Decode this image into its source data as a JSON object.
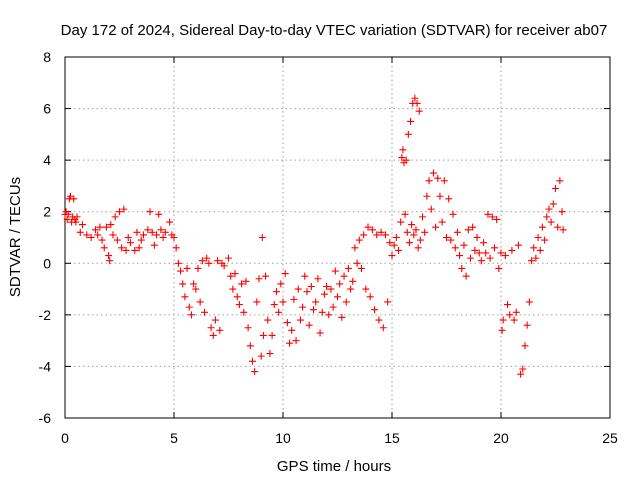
{
  "chart_data": {
    "type": "scatter",
    "title": "Day 172 of 2024, Sidereal Day-to-day VTEC variation (SDTVAR) for receiver ab07",
    "xlabel": "GPS time / hours",
    "ylabel": "SDTVAR / TECUs",
    "xlim": [
      0,
      25
    ],
    "ylim": [
      -6,
      8
    ],
    "xticks": [
      0,
      5,
      10,
      15,
      20,
      25
    ],
    "yticks": [
      -6,
      -4,
      -2,
      0,
      2,
      4,
      6,
      8
    ],
    "xtick_labels": [
      "0",
      "5",
      "10",
      "15",
      "20",
      "25"
    ],
    "ytick_labels": [
      "-6",
      "-4",
      "-2",
      "0",
      "2",
      "4",
      "6",
      "8"
    ],
    "grid": true,
    "marker": "+",
    "color": "#ff0000",
    "series": [
      {
        "name": "SDTVAR",
        "points": [
          [
            0.0,
            1.9
          ],
          [
            0.05,
            2.0
          ],
          [
            0.1,
            1.7
          ],
          [
            0.15,
            1.9
          ],
          [
            0.2,
            2.5
          ],
          [
            0.25,
            2.6
          ],
          [
            0.3,
            1.6
          ],
          [
            0.35,
            1.8
          ],
          [
            0.4,
            2.5
          ],
          [
            0.45,
            1.7
          ],
          [
            0.5,
            1.6
          ],
          [
            0.55,
            1.8
          ],
          [
            0.7,
            1.2
          ],
          [
            0.8,
            1.5
          ],
          [
            1.0,
            1.1
          ],
          [
            1.2,
            1.0
          ],
          [
            1.4,
            1.3
          ],
          [
            1.5,
            1.1
          ],
          [
            1.6,
            1.4
          ],
          [
            1.7,
            0.9
          ],
          [
            1.8,
            0.6
          ],
          [
            1.9,
            1.4
          ],
          [
            2.0,
            0.3
          ],
          [
            2.05,
            0.1
          ],
          [
            2.1,
            1.5
          ],
          [
            2.2,
            1.1
          ],
          [
            2.3,
            1.8
          ],
          [
            2.4,
            0.9
          ],
          [
            2.5,
            2.0
          ],
          [
            2.6,
            0.6
          ],
          [
            2.7,
            2.1
          ],
          [
            2.8,
            0.5
          ],
          [
            2.9,
            1.0
          ],
          [
            3.0,
            0.8
          ],
          [
            3.2,
            0.5
          ],
          [
            3.3,
            1.2
          ],
          [
            3.4,
            0.6
          ],
          [
            3.5,
            0.9
          ],
          [
            3.6,
            1.1
          ],
          [
            3.8,
            1.3
          ],
          [
            3.9,
            2.0
          ],
          [
            4.0,
            1.2
          ],
          [
            4.1,
            0.7
          ],
          [
            4.2,
            1.1
          ],
          [
            4.3,
            1.9
          ],
          [
            4.4,
            1.3
          ],
          [
            4.5,
            1.0
          ],
          [
            4.6,
            1.2
          ],
          [
            4.8,
            1.6
          ],
          [
            4.9,
            1.1
          ],
          [
            5.0,
            1.0
          ],
          [
            5.1,
            0.6
          ],
          [
            5.2,
            0.0
          ],
          [
            5.3,
            -0.3
          ],
          [
            5.4,
            -0.8
          ],
          [
            5.5,
            -1.3
          ],
          [
            5.6,
            -0.2
          ],
          [
            5.7,
            -1.7
          ],
          [
            5.8,
            -2.0
          ],
          [
            5.9,
            -0.8
          ],
          [
            6.0,
            -1.0
          ],
          [
            6.1,
            -0.2
          ],
          [
            6.2,
            -1.5
          ],
          [
            6.3,
            0.1
          ],
          [
            6.4,
            -1.9
          ],
          [
            6.5,
            0.2
          ],
          [
            6.6,
            0.0
          ],
          [
            6.7,
            -2.5
          ],
          [
            6.8,
            -2.8
          ],
          [
            6.9,
            -2.2
          ],
          [
            7.0,
            0.1
          ],
          [
            7.1,
            -2.6
          ],
          [
            7.2,
            0.0
          ],
          [
            7.3,
            -0.1
          ],
          [
            7.5,
            0.2
          ],
          [
            7.6,
            -0.5
          ],
          [
            7.7,
            -1.0
          ],
          [
            7.8,
            -0.4
          ],
          [
            7.9,
            -1.3
          ],
          [
            8.0,
            -1.6
          ],
          [
            8.1,
            -0.8
          ],
          [
            8.2,
            -1.9
          ],
          [
            8.3,
            -0.7
          ],
          [
            8.4,
            -2.5
          ],
          [
            8.5,
            -3.2
          ],
          [
            8.6,
            -3.8
          ],
          [
            8.7,
            -4.2
          ],
          [
            8.8,
            -1.5
          ],
          [
            8.9,
            -0.6
          ],
          [
            9.0,
            -3.6
          ],
          [
            9.05,
            1.0
          ],
          [
            9.1,
            -2.8
          ],
          [
            9.2,
            -0.5
          ],
          [
            9.3,
            -2.2
          ],
          [
            9.4,
            -3.5
          ],
          [
            9.5,
            -2.8
          ],
          [
            9.6,
            -1.6
          ],
          [
            9.7,
            -1.1
          ],
          [
            9.8,
            -1.9
          ],
          [
            9.9,
            -0.8
          ],
          [
            10.0,
            -1.5
          ],
          [
            10.1,
            -0.4
          ],
          [
            10.2,
            -2.3
          ],
          [
            10.3,
            -3.1
          ],
          [
            10.4,
            -2.6
          ],
          [
            10.5,
            -1.4
          ],
          [
            10.6,
            -3.0
          ],
          [
            10.7,
            -1.0
          ],
          [
            10.8,
            -2.2
          ],
          [
            10.9,
            -1.7
          ],
          [
            11.0,
            -0.5
          ],
          [
            11.1,
            -1.1
          ],
          [
            11.2,
            -2.4
          ],
          [
            11.3,
            -0.9
          ],
          [
            11.4,
            -1.8
          ],
          [
            11.5,
            -1.5
          ],
          [
            11.6,
            -0.6
          ],
          [
            11.7,
            -2.7
          ],
          [
            11.8,
            -1.9
          ],
          [
            11.9,
            -1.2
          ],
          [
            12.0,
            -0.9
          ],
          [
            12.1,
            -2.0
          ],
          [
            12.2,
            -1.0
          ],
          [
            12.3,
            -1.7
          ],
          [
            12.4,
            -0.3
          ],
          [
            12.5,
            -1.3
          ],
          [
            12.6,
            -0.8
          ],
          [
            12.7,
            -2.1
          ],
          [
            12.8,
            -0.5
          ],
          [
            12.9,
            -1.5
          ],
          [
            13.0,
            -0.2
          ],
          [
            13.1,
            -1.0
          ],
          [
            13.2,
            -0.7
          ],
          [
            13.3,
            0.6
          ],
          [
            13.4,
            0.0
          ],
          [
            13.5,
            0.9
          ],
          [
            13.6,
            -0.2
          ],
          [
            13.7,
            1.1
          ],
          [
            13.8,
            -1.0
          ],
          [
            13.9,
            1.4
          ],
          [
            14.0,
            -1.3
          ],
          [
            14.1,
            1.3
          ],
          [
            14.2,
            -1.8
          ],
          [
            14.3,
            1.1
          ],
          [
            14.4,
            -2.2
          ],
          [
            14.5,
            1.2
          ],
          [
            14.6,
            -2.5
          ],
          [
            14.7,
            1.1
          ],
          [
            14.8,
            -1.5
          ],
          [
            14.9,
            0.8
          ],
          [
            15.0,
            0.3
          ],
          [
            15.1,
            0.7
          ],
          [
            15.2,
            1.0
          ],
          [
            15.3,
            0.5
          ],
          [
            15.4,
            1.6
          ],
          [
            15.45,
            4.1
          ],
          [
            15.5,
            4.4
          ],
          [
            15.55,
            3.9
          ],
          [
            15.6,
            1.9
          ],
          [
            15.65,
            4.0
          ],
          [
            15.7,
            1.2
          ],
          [
            15.75,
            5.0
          ],
          [
            15.8,
            0.8
          ],
          [
            15.85,
            5.5
          ],
          [
            15.9,
            1.5
          ],
          [
            15.95,
            6.2
          ],
          [
            16.0,
            1.1
          ],
          [
            16.05,
            6.4
          ],
          [
            16.1,
            1.3
          ],
          [
            16.15,
            6.2
          ],
          [
            16.2,
            0.6
          ],
          [
            16.25,
            5.9
          ],
          [
            16.3,
            0.9
          ],
          [
            16.4,
            1.8
          ],
          [
            16.5,
            1.2
          ],
          [
            16.6,
            2.6
          ],
          [
            16.7,
            3.2
          ],
          [
            16.8,
            2.1
          ],
          [
            16.9,
            3.5
          ],
          [
            17.0,
            1.4
          ],
          [
            17.1,
            3.3
          ],
          [
            17.2,
            2.6
          ],
          [
            17.3,
            1.6
          ],
          [
            17.4,
            3.2
          ],
          [
            17.5,
            1.0
          ],
          [
            17.6,
            2.5
          ],
          [
            17.7,
            0.9
          ],
          [
            17.8,
            1.9
          ],
          [
            17.9,
            0.6
          ],
          [
            18.0,
            1.2
          ],
          [
            18.1,
            0.3
          ],
          [
            18.2,
            -0.2
          ],
          [
            18.3,
            0.7
          ],
          [
            18.4,
            -0.5
          ],
          [
            18.5,
            1.3
          ],
          [
            18.6,
            0.2
          ],
          [
            18.7,
            1.4
          ],
          [
            18.8,
            0.5
          ],
          [
            18.9,
            1.0
          ],
          [
            19.0,
            0.4
          ],
          [
            19.1,
            0.1
          ],
          [
            19.2,
            0.8
          ],
          [
            19.3,
            0.4
          ],
          [
            19.4,
            1.9
          ],
          [
            19.5,
            0.2
          ],
          [
            19.6,
            1.8
          ],
          [
            19.7,
            0.6
          ],
          [
            19.8,
            1.7
          ],
          [
            19.9,
            -0.2
          ],
          [
            20.0,
            0.4
          ],
          [
            20.05,
            -2.6
          ],
          [
            20.1,
            -2.2
          ],
          [
            20.2,
            0.3
          ],
          [
            20.3,
            -1.6
          ],
          [
            20.4,
            -2.0
          ],
          [
            20.5,
            0.5
          ],
          [
            20.6,
            -2.2
          ],
          [
            20.7,
            -1.9
          ],
          [
            20.8,
            0.7
          ],
          [
            20.9,
            -4.3
          ],
          [
            21.0,
            -4.1
          ],
          [
            21.1,
            -3.2
          ],
          [
            21.2,
            -2.4
          ],
          [
            21.3,
            -1.5
          ],
          [
            21.4,
            0.1
          ],
          [
            21.5,
            0.6
          ],
          [
            21.6,
            0.2
          ],
          [
            21.7,
            1.0
          ],
          [
            21.8,
            0.5
          ],
          [
            21.9,
            1.4
          ],
          [
            22.0,
            0.9
          ],
          [
            22.1,
            1.8
          ],
          [
            22.2,
            2.1
          ],
          [
            22.3,
            1.6
          ],
          [
            22.4,
            2.3
          ],
          [
            22.5,
            2.9
          ],
          [
            22.6,
            1.4
          ],
          [
            22.7,
            3.2
          ],
          [
            22.8,
            2.0
          ],
          [
            22.85,
            1.3
          ]
        ]
      }
    ]
  }
}
